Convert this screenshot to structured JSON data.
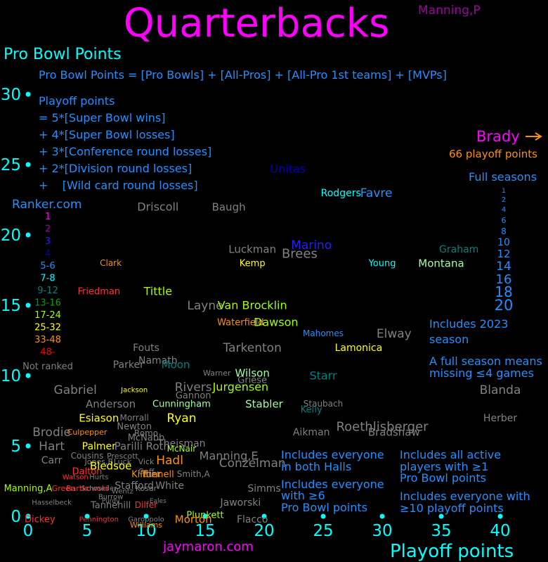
{
  "chart_data": {
    "type": "scatter",
    "title": "Quarterbacks",
    "ylabel": "Pro Bowl Points",
    "xlabel": "Playoff points",
    "xlim": [
      0,
      42
    ],
    "ylim": [
      0,
      31
    ],
    "xticks": [
      0,
      5,
      10,
      15,
      20,
      25,
      30,
      35,
      40
    ],
    "yticks": [
      0,
      5,
      10,
      15,
      20,
      25,
      30
    ],
    "top_right_label": "Manning,P",
    "notes": {
      "formula": "Pro Bowl Points = [Pro Bowls] + [All-Pros] + [All-Pro 1st teams] + [MVPs]",
      "playoff": [
        "Playoff points",
        "= 5*[Super Bowl wins]",
        "+ 4*[Super Bowl losses]",
        "+ 3*[Conference round losses]",
        "+ 2*[Division round losses]",
        "+    [Wild card round losses]"
      ],
      "source": "Ranker.com",
      "brady": "Brady",
      "brady_points": "66 playoff points",
      "full_seasons_title": "Full seasons",
      "includes_2023": [
        "Includes 2023",
        "season"
      ],
      "full_season_def": [
        "A full season means",
        "missing  ≤4 games"
      ],
      "halls": [
        "Includes everyone",
        "in both Halls"
      ],
      "ge6": [
        "Includes everyone",
        "with  ≥6",
        "Pro Bowl points"
      ],
      "active": [
        "Includes all active",
        "players with  ≥1",
        "Pro Bowl points"
      ],
      "ge10": [
        "Includes everyone with",
        " ≥10 playoff points"
      ],
      "credit": "jaymaron.com"
    },
    "ranker_legend": [
      {
        "label": "1",
        "color": "#ff00ff"
      },
      {
        "label": "2",
        "color": "#a000a0"
      },
      {
        "label": "3",
        "color": "#2020ff"
      },
      {
        "label": "4",
        "color": "#0000b0"
      },
      {
        "label": "5-6",
        "color": "#2090ff"
      },
      {
        "label": "7-8",
        "color": "#00ffff"
      },
      {
        "label": "9-12",
        "color": "#008080"
      },
      {
        "label": "13-16",
        "color": "#00a000"
      },
      {
        "label": "17-24",
        "color": "#a0ff00"
      },
      {
        "label": "25-32",
        "color": "#ffff00"
      },
      {
        "label": "33-48",
        "color": "#ff9000"
      },
      {
        "label": "48-",
        "color": "#ff0000"
      },
      {
        "label": "Not ranked",
        "color": "#808080"
      }
    ],
    "seasons_legend": [
      "1",
      "2",
      "4",
      "6",
      "8",
      "10",
      "12",
      "14",
      "16",
      "18",
      "20"
    ],
    "players": [
      {
        "name": "Unitas",
        "x": 22,
        "y": 24.7,
        "color": "#0000b0",
        "size": 16
      },
      {
        "name": "Rodgers",
        "x": 26.5,
        "y": 23.0,
        "color": "#00ffff",
        "size": 14
      },
      {
        "name": "Favre",
        "x": 29.5,
        "y": 23.0,
        "color": "#2090ff",
        "size": 17
      },
      {
        "name": "Driscoll",
        "x": 11,
        "y": 22.0,
        "color": "#808080",
        "size": 16
      },
      {
        "name": "Baugh",
        "x": 17,
        "y": 22.0,
        "color": "#808080",
        "size": 15
      },
      {
        "name": "Luckman",
        "x": 19,
        "y": 19.0,
        "color": "#808080",
        "size": 15
      },
      {
        "name": "Marino",
        "x": 24,
        "y": 19.3,
        "color": "#2020ff",
        "size": 17
      },
      {
        "name": "Brees",
        "x": 23,
        "y": 18.7,
        "color": "#808080",
        "size": 18
      },
      {
        "name": "Graham",
        "x": 36.5,
        "y": 19.0,
        "color": "#008080",
        "size": 14
      },
      {
        "name": "Clark",
        "x": 7,
        "y": 18.0,
        "color": "#ff9000",
        "size": 12
      },
      {
        "name": "Kemp",
        "x": 19,
        "y": 18.0,
        "color": "#ffff00",
        "size": 13
      },
      {
        "name": "Young",
        "x": 30,
        "y": 18.0,
        "color": "#00ffff",
        "size": 13
      },
      {
        "name": "Montana",
        "x": 35,
        "y": 18.0,
        "color": "#a0ffa0",
        "size": 15
      },
      {
        "name": "Friedman",
        "x": 6,
        "y": 16.0,
        "color": "#ff3030",
        "size": 13
      },
      {
        "name": "Tittle",
        "x": 11,
        "y": 16.0,
        "color": "#a0ff00",
        "size": 16
      },
      {
        "name": "Layne",
        "x": 15,
        "y": 15.0,
        "color": "#808080",
        "size": 17
      },
      {
        "name": "Van Brocklin",
        "x": 19,
        "y": 15.0,
        "color": "#a0ff00",
        "size": 16
      },
      {
        "name": "Waterfield",
        "x": 18,
        "y": 13.8,
        "color": "#ff9000",
        "size": 13
      },
      {
        "name": "Dawson",
        "x": 21,
        "y": 13.8,
        "color": "#a0ff00",
        "size": 16
      },
      {
        "name": "Mahomes",
        "x": 25,
        "y": 13.0,
        "color": "#2090ff",
        "size": 12
      },
      {
        "name": "Elway",
        "x": 31,
        "y": 13.0,
        "color": "#808080",
        "size": 17
      },
      {
        "name": "Fouts",
        "x": 10,
        "y": 12.0,
        "color": "#808080",
        "size": 14
      },
      {
        "name": "Tarkenton",
        "x": 19,
        "y": 12.0,
        "color": "#808080",
        "size": 17
      },
      {
        "name": "Lamonica",
        "x": 28,
        "y": 12.0,
        "color": "#ffff00",
        "size": 14
      },
      {
        "name": "Namath",
        "x": 11,
        "y": 11.1,
        "color": "#808080",
        "size": 14
      },
      {
        "name": "Not ranked col",
        "x": -1,
        "y": -1,
        "color": "#000000",
        "size": 0
      },
      {
        "name": "Parker",
        "x": 8.5,
        "y": 10.8,
        "color": "#808080",
        "size": 14
      },
      {
        "name": "Moon",
        "x": 12.5,
        "y": 10.8,
        "color": "#008080",
        "size": 15
      },
      {
        "name": "Warner",
        "x": 16,
        "y": 10.2,
        "color": "#808080",
        "size": 11
      },
      {
        "name": "Wilson",
        "x": 19,
        "y": 10.2,
        "color": "#a0ffa0",
        "size": 15
      },
      {
        "name": "Starr",
        "x": 25,
        "y": 10.0,
        "color": "#008080",
        "size": 16
      },
      {
        "name": "Griese",
        "x": 19,
        "y": 9.7,
        "color": "#808080",
        "size": 13
      },
      {
        "name": "Gabriel",
        "x": 4,
        "y": 9.0,
        "color": "#808080",
        "size": 17
      },
      {
        "name": "Jackson",
        "x": 9,
        "y": 9.0,
        "color": "#ffff00",
        "size": 10
      },
      {
        "name": "Rivers",
        "x": 14,
        "y": 9.2,
        "color": "#808080",
        "size": 17
      },
      {
        "name": "Jurgensen",
        "x": 18,
        "y": 9.2,
        "color": "#a0ff00",
        "size": 16
      },
      {
        "name": "Blanda",
        "x": 40,
        "y": 9.0,
        "color": "#808080",
        "size": 17
      },
      {
        "name": "Gannon",
        "x": 14,
        "y": 8.6,
        "color": "#808080",
        "size": 13
      },
      {
        "name": "Anderson",
        "x": 7,
        "y": 8.0,
        "color": "#808080",
        "size": 15
      },
      {
        "name": "Cunningham",
        "x": 13,
        "y": 8.0,
        "color": "#a0ffa0",
        "size": 13
      },
      {
        "name": "Stabler",
        "x": 20,
        "y": 8.0,
        "color": "#a0ffa0",
        "size": 15
      },
      {
        "name": "Staubach",
        "x": 25,
        "y": 8.0,
        "color": "#808080",
        "size": 12
      },
      {
        "name": "Kelly",
        "x": 24,
        "y": 7.6,
        "color": "#008080",
        "size": 13
      },
      {
        "name": "Esiason",
        "x": 6,
        "y": 7.0,
        "color": "#ffff00",
        "size": 15
      },
      {
        "name": "Morrall",
        "x": 9,
        "y": 7.0,
        "color": "#808080",
        "size": 12
      },
      {
        "name": "Ryan",
        "x": 13,
        "y": 7.0,
        "color": "#ffff00",
        "size": 17
      },
      {
        "name": "Herber",
        "x": 40,
        "y": 7.0,
        "color": "#808080",
        "size": 14
      },
      {
        "name": "Newton",
        "x": 9,
        "y": 6.4,
        "color": "#808080",
        "size": 13
      },
      {
        "name": "Roethlisberger",
        "x": 30,
        "y": 6.4,
        "color": "#808080",
        "size": 18
      },
      {
        "name": "Brodie",
        "x": 2,
        "y": 6.0,
        "color": "#808080",
        "size": 17
      },
      {
        "name": "Culpepper",
        "x": 5,
        "y": 6.0,
        "color": "#ff9000",
        "size": 11
      },
      {
        "name": "Romo",
        "x": 10,
        "y": 5.9,
        "color": "#808080",
        "size": 12
      },
      {
        "name": "Aikman",
        "x": 24,
        "y": 6.0,
        "color": "#808080",
        "size": 14
      },
      {
        "name": "Bradshaw",
        "x": 31,
        "y": 6.0,
        "color": "#808080",
        "size": 15
      },
      {
        "name": "McNabb",
        "x": 10,
        "y": 5.6,
        "color": "#808080",
        "size": 13
      },
      {
        "name": "Theisman",
        "x": 13,
        "y": 5.2,
        "color": "#808080",
        "size": 14
      },
      {
        "name": "Hart",
        "x": 2,
        "y": 5.0,
        "color": "#808080",
        "size": 17
      },
      {
        "name": "Palmer",
        "x": 6,
        "y": 5.0,
        "color": "#ffff00",
        "size": 14
      },
      {
        "name": "Parilli",
        "x": 8.5,
        "y": 5.0,
        "color": "#808080",
        "size": 15
      },
      {
        "name": "Roth",
        "x": 11,
        "y": 5.0,
        "color": "#808080",
        "size": 15
      },
      {
        "name": "McNair",
        "x": 13,
        "y": 4.8,
        "color": "#a0ff00",
        "size": 12
      },
      {
        "name": "Cousins",
        "x": 5,
        "y": 4.3,
        "color": "#808080",
        "size": 12
      },
      {
        "name": "Prescott",
        "x": 8,
        "y": 4.3,
        "color": "#808080",
        "size": 11
      },
      {
        "name": "Manning,E",
        "x": 17,
        "y": 4.3,
        "color": "#808080",
        "size": 16
      },
      {
        "name": "Carr",
        "x": 2,
        "y": 4.0,
        "color": "#808080",
        "size": 14
      },
      {
        "name": "Jones,B",
        "x": 6,
        "y": 3.9,
        "color": "#808080",
        "size": 11
      },
      {
        "name": "Luck",
        "x": 8,
        "y": 3.9,
        "color": "#808080",
        "size": 11
      },
      {
        "name": "Vick",
        "x": 10,
        "y": 3.9,
        "color": "#808080",
        "size": 11
      },
      {
        "name": "Hadl",
        "x": 12,
        "y": 4.0,
        "color": "#ff9000",
        "size": 17
      },
      {
        "name": "Conzelman",
        "x": 19,
        "y": 3.8,
        "color": "#808080",
        "size": 17
      },
      {
        "name": "Bledsoe",
        "x": 7,
        "y": 3.6,
        "color": "#ffff00",
        "size": 15
      },
      {
        "name": "Goff",
        "x": 10,
        "y": 3.2,
        "color": "#808080",
        "size": 11
      },
      {
        "name": "Dalton",
        "x": 5,
        "y": 3.2,
        "color": "#ff3030",
        "size": 13
      },
      {
        "name": "Kilmer",
        "x": 10,
        "y": 3.0,
        "color": "#ff9000",
        "size": 13
      },
      {
        "name": "Burk",
        "x": 10.5,
        "y": 3.0,
        "color": "#808080",
        "size": 11
      },
      {
        "name": "Tunnell",
        "x": 11,
        "y": 3.0,
        "color": "#ff9000",
        "size": 13
      },
      {
        "name": "Smith,A",
        "x": 14,
        "y": 3.0,
        "color": "#808080",
        "size": 12
      },
      {
        "name": "Watson",
        "x": 4,
        "y": 2.8,
        "color": "#ff3030",
        "size": 10
      },
      {
        "name": "Hurts",
        "x": 6,
        "y": 2.8,
        "color": "#808080",
        "size": 10
      },
      {
        "name": "Brees2",
        "x": -1,
        "y": -1,
        "color": "#000000",
        "size": 0
      },
      {
        "name": "Stafford",
        "x": 9,
        "y": 2.2,
        "color": "#808080",
        "size": 14
      },
      {
        "name": "White",
        "x": 12,
        "y": 2.2,
        "color": "#808080",
        "size": 14
      },
      {
        "name": "Manning,A",
        "x": 0,
        "y": 2.0,
        "color": "#a0ff00",
        "size": 13
      },
      {
        "name": "Green",
        "x": 3,
        "y": 2.0,
        "color": "#ff3030",
        "size": 11
      },
      {
        "name": "Bartkowski",
        "x": 5,
        "y": 2.0,
        "color": "#ff3030",
        "size": 11
      },
      {
        "name": "Schroeder",
        "x": 6,
        "y": 2.0,
        "color": "#808080",
        "size": 10
      },
      {
        "name": "Wentz",
        "x": 8,
        "y": 1.8,
        "color": "#808080",
        "size": 10
      },
      {
        "name": "Kosar",
        "x": 10,
        "y": 2.0,
        "color": "#808080",
        "size": 11
      },
      {
        "name": "Simms",
        "x": 20,
        "y": 2.0,
        "color": "#808080",
        "size": 14
      },
      {
        "name": "Burrow",
        "x": 7,
        "y": 1.4,
        "color": "#808080",
        "size": 10
      },
      {
        "name": "Purdy",
        "x": 7,
        "y": 1.1,
        "color": "#808080",
        "size": 9
      },
      {
        "name": "Eales",
        "x": 11,
        "y": 1.1,
        "color": "#808080",
        "size": 9
      },
      {
        "name": "Jaworski",
        "x": 18,
        "y": 1.0,
        "color": "#808080",
        "size": 14
      },
      {
        "name": "Hasselbeck",
        "x": 2,
        "y": 1.0,
        "color": "#808080",
        "size": 10
      },
      {
        "name": "Tannehill",
        "x": 7,
        "y": 0.8,
        "color": "#808080",
        "size": 13
      },
      {
        "name": "Dilfer",
        "x": 10,
        "y": 0.8,
        "color": "#ff3030",
        "size": 12
      },
      {
        "name": "Plunkett",
        "x": 15,
        "y": 0.1,
        "color": "#a0ff00",
        "size": 13
      },
      {
        "name": "Dickey",
        "x": 1,
        "y": -0.2,
        "color": "#ff3030",
        "size": 13
      },
      {
        "name": "Pennington",
        "x": 6,
        "y": -0.2,
        "color": "#ff3030",
        "size": 10
      },
      {
        "name": "Garoppolo",
        "x": 10,
        "y": -0.2,
        "color": "#808080",
        "size": 10
      },
      {
        "name": "Williams",
        "x": 10,
        "y": -0.6,
        "color": "#ff9000",
        "size": 11
      },
      {
        "name": "Morton",
        "x": 14,
        "y": -0.2,
        "color": "#ff9000",
        "size": 15
      },
      {
        "name": "Flacco",
        "x": 19,
        "y": -0.2,
        "color": "#808080",
        "size": 14
      }
    ]
  }
}
